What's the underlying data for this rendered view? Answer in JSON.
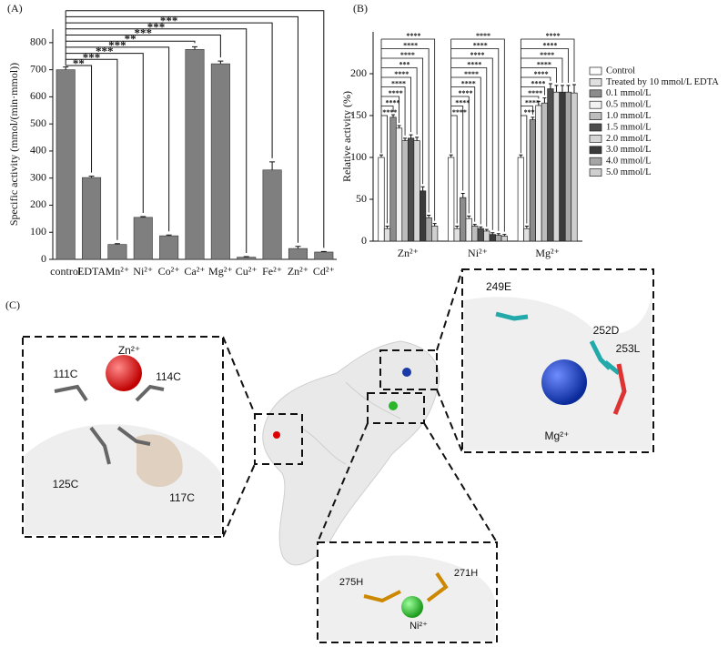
{
  "chart_data": [
    {
      "type": "bar",
      "title": "(A)",
      "y_label": "Specific activity (mmol/(min·mmol))",
      "categories": [
        "control",
        "EDTA",
        "Mn²⁺",
        "Ni²⁺",
        "Co²⁺",
        "Ca²⁺",
        "Mg²⁺",
        "Cu²⁺",
        "Fe²⁺",
        "Zn²⁺",
        "Cd²⁺"
      ],
      "values": [
        700,
        302,
        55,
        155,
        87,
        775,
        722,
        8,
        330,
        40,
        27
      ],
      "errors": [
        10,
        5,
        3,
        3,
        3,
        10,
        10,
        2,
        30,
        8,
        2
      ],
      "significance": [
        null,
        "**",
        "***",
        "***",
        "***",
        "**",
        "***",
        "***",
        "***",
        null,
        null
      ],
      "color": "#7f7f7f",
      "ylim": [
        0,
        850
      ],
      "yticks": [
        0,
        100,
        200,
        300,
        400,
        500,
        600,
        700,
        800
      ]
    },
    {
      "type": "bar",
      "title": "(B)",
      "y_label": "Relative activity (%)",
      "categories": [
        "Zn²⁺",
        "Ni²⁺",
        "Mg²⁺"
      ],
      "series": [
        {
          "name": "Control",
          "color": "#ffffff",
          "values": [
            100,
            100,
            100
          ],
          "errors": [
            3,
            3,
            3
          ]
        },
        {
          "name": "Treated by 10 mmol/L EDTA",
          "color": "#e0e0e0",
          "values": [
            15,
            15,
            15
          ],
          "errors": [
            3,
            3,
            3
          ]
        },
        {
          "name": "0.1 mmol/L",
          "color": "#8c8c8c",
          "values": [
            148,
            52,
            145
          ],
          "errors": [
            3,
            5,
            3
          ]
        },
        {
          "name": "0.5 mmol/L",
          "color": "#f2f2f2",
          "values": [
            135,
            27,
            162
          ],
          "errors": [
            3,
            3,
            5
          ]
        },
        {
          "name": "1.0 mmol/L",
          "color": "#bdbdbd",
          "values": [
            120,
            18,
            165
          ],
          "errors": [
            3,
            2,
            6
          ]
        },
        {
          "name": "1.5 mmol/L",
          "color": "#4d4d4d",
          "values": [
            123,
            15,
            182
          ],
          "errors": [
            4,
            2,
            6
          ]
        },
        {
          "name": "2.0 mmol/L",
          "color": "#d6d6d6",
          "values": [
            120,
            12,
            178
          ],
          "errors": [
            4,
            2,
            8
          ]
        },
        {
          "name": "3.0 mmol/L",
          "color": "#3a3a3a",
          "values": [
            60,
            8,
            178
          ],
          "errors": [
            5,
            2,
            8
          ]
        },
        {
          "name": "4.0 mmol/L",
          "color": "#a6a6a6",
          "values": [
            28,
            7,
            178
          ],
          "errors": [
            3,
            2,
            8
          ]
        },
        {
          "name": "5.0 mmol/L",
          "color": "#cfcfcf",
          "values": [
            18,
            6,
            177
          ],
          "errors": [
            3,
            2,
            10
          ]
        }
      ],
      "significance": [
        [
          null,
          "****",
          "****",
          "****",
          "****",
          "****",
          "***",
          "****",
          "****",
          "****"
        ],
        [
          null,
          "****",
          "****",
          "****",
          "****",
          "****",
          "****",
          "****",
          "****",
          "****"
        ],
        [
          null,
          "***",
          "****",
          "****",
          "****",
          "****",
          "****",
          "****",
          "****",
          "****"
        ]
      ],
      "ylim": [
        0,
        250
      ],
      "yticks": [
        0,
        50,
        100,
        150,
        200
      ],
      "legend": "right"
    }
  ],
  "panel_c": {
    "label": "(C)",
    "zn_site": {
      "ion": "Zn²⁺",
      "residues": [
        "111C",
        "114C",
        "125C",
        "117C"
      ]
    },
    "mg_site": {
      "ion": "Mg²⁺",
      "residues": [
        "249E",
        "252D",
        "253L"
      ]
    },
    "ni_site": {
      "ion": "Ni²⁺",
      "residues": [
        "275H",
        "271H"
      ]
    }
  }
}
